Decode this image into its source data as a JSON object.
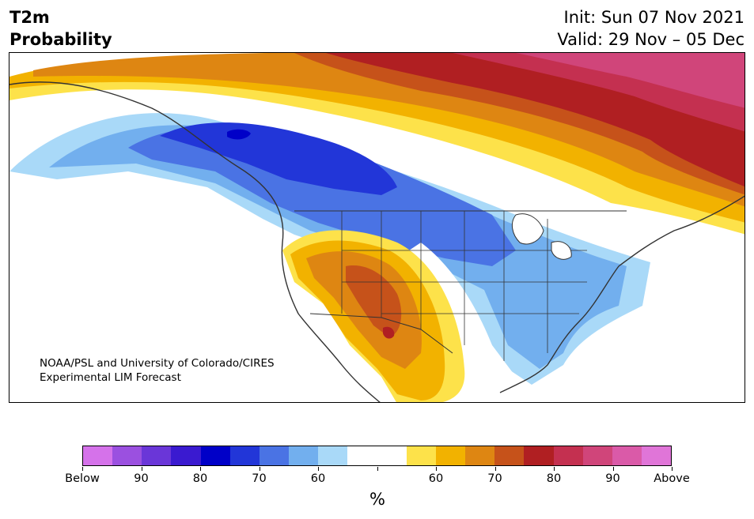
{
  "title": {
    "left_line1": "T2m",
    "left_line2": "Probability",
    "init": "Init: Sun 07 Nov 2021",
    "valid": "Valid: 29 Nov – 05 Dec"
  },
  "credit": {
    "line1": "NOAA/PSL and University of Colorado/CIRES",
    "line2": "Experimental LIM Forecast"
  },
  "map": {
    "region": "North America",
    "variable": "2-m temperature tercile probability",
    "colors": {
      "below_60": "#a9d9f8",
      "below_70": "#72afee",
      "below_80": "#4a73e4",
      "below_90": "#2236d8",
      "below_max": "#0000c8",
      "above_60": "#fde24a",
      "above_70": "#f2b200",
      "above_80": "#de8612",
      "above_90": "#c6521a",
      "above_95": "#b01f22",
      "above_max": "#c43050",
      "above_top": "#d0457a",
      "land_lines": "#333333"
    }
  },
  "colorbar": {
    "colors": [
      "#d572ea",
      "#9b50e0",
      "#6a36d8",
      "#3a1ad0",
      "#0000c8",
      "#2236d8",
      "#4a73e4",
      "#72afee",
      "#a9d9f8",
      "#ffffff",
      "#ffffff",
      "#fde24a",
      "#f2b200",
      "#de8612",
      "#c6521a",
      "#b01f22",
      "#c43050",
      "#d0457a",
      "#da5aa8",
      "#e075d8"
    ],
    "tick_labels": [
      "Below",
      "90",
      "80",
      "70",
      "60",
      "",
      "60",
      "70",
      "80",
      "90",
      "Above"
    ],
    "unit": "%"
  }
}
